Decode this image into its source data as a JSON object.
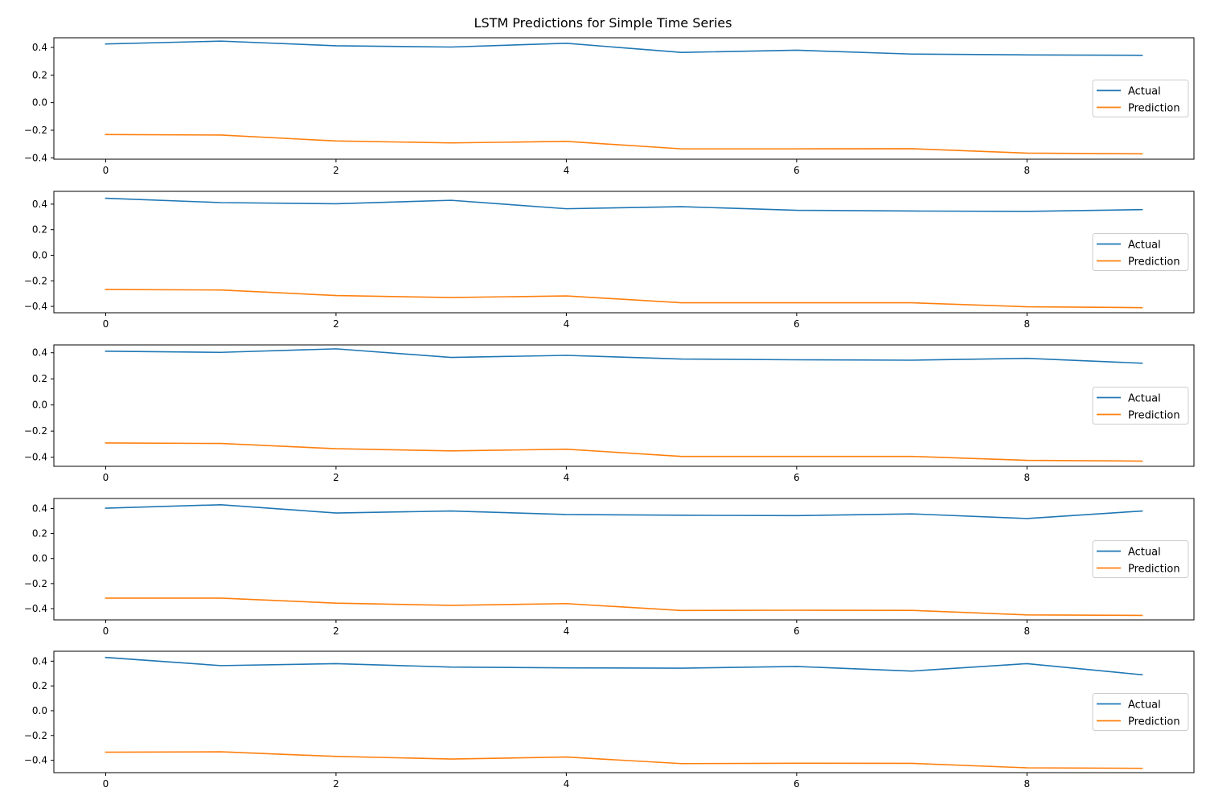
{
  "figure": {
    "title": "LSTM Predictions for Simple Time Series"
  },
  "colors": {
    "Actual": "#1f77b4",
    "Prediction": "#ff7f0e"
  },
  "chart_data": [
    {
      "type": "line",
      "x": [
        0,
        1,
        2,
        3,
        4,
        5,
        6,
        7,
        8,
        9
      ],
      "xticks": [
        0,
        2,
        4,
        6,
        8
      ],
      "xlim": [
        -0.45,
        9.45
      ],
      "ylim": [
        -0.41,
        0.47
      ],
      "yticks": [
        0.4,
        0.2,
        0.0,
        -0.2,
        -0.4
      ],
      "ytick_labels": [
        "0.4",
        "0.2",
        "0.0",
        "−0.2",
        "−0.4"
      ],
      "legend": "center-right",
      "grid": false,
      "series": [
        {
          "name": "Actual",
          "values": [
            0.425,
            0.446,
            0.412,
            0.403,
            0.43,
            0.364,
            0.38,
            0.352,
            0.346,
            0.343
          ]
        },
        {
          "name": "Prediction",
          "values": [
            -0.231,
            -0.235,
            -0.278,
            -0.292,
            -0.281,
            -0.335,
            -0.335,
            -0.334,
            -0.366,
            -0.371
          ]
        }
      ]
    },
    {
      "type": "line",
      "x": [
        0,
        1,
        2,
        3,
        4,
        5,
        6,
        7,
        8,
        9
      ],
      "xticks": [
        0,
        2,
        4,
        6,
        8
      ],
      "xlim": [
        -0.45,
        9.45
      ],
      "ylim": [
        -0.45,
        0.5
      ],
      "yticks": [
        0.4,
        0.2,
        0.0,
        -0.2,
        -0.4
      ],
      "ytick_labels": [
        "0.4",
        "0.2",
        "0.0",
        "−0.2",
        "−0.4"
      ],
      "legend": "center-right",
      "grid": false,
      "series": [
        {
          "name": "Actual",
          "values": [
            0.446,
            0.412,
            0.403,
            0.43,
            0.364,
            0.38,
            0.352,
            0.346,
            0.343,
            0.357
          ]
        },
        {
          "name": "Prediction",
          "values": [
            -0.268,
            -0.272,
            -0.315,
            -0.331,
            -0.318,
            -0.372,
            -0.372,
            -0.372,
            -0.403,
            -0.41
          ]
        }
      ]
    },
    {
      "type": "line",
      "x": [
        0,
        1,
        2,
        3,
        4,
        5,
        6,
        7,
        8,
        9
      ],
      "xticks": [
        0,
        2,
        4,
        6,
        8
      ],
      "xlim": [
        -0.45,
        9.45
      ],
      "ylim": [
        -0.47,
        0.46
      ],
      "yticks": [
        0.4,
        0.2,
        0.0,
        -0.2,
        -0.4
      ],
      "ytick_labels": [
        "0.4",
        "0.2",
        "0.0",
        "−0.2",
        "−0.4"
      ],
      "legend": "center-right",
      "grid": false,
      "series": [
        {
          "name": "Actual",
          "values": [
            0.412,
            0.403,
            0.43,
            0.364,
            0.38,
            0.352,
            0.346,
            0.343,
            0.357,
            0.32
          ]
        },
        {
          "name": "Prediction",
          "values": [
            -0.291,
            -0.295,
            -0.335,
            -0.352,
            -0.339,
            -0.394,
            -0.394,
            -0.394,
            -0.424,
            -0.43
          ]
        }
      ]
    },
    {
      "type": "line",
      "x": [
        0,
        1,
        2,
        3,
        4,
        5,
        6,
        7,
        8,
        9
      ],
      "xticks": [
        0,
        2,
        4,
        6,
        8
      ],
      "xlim": [
        -0.45,
        9.45
      ],
      "ylim": [
        -0.49,
        0.48
      ],
      "yticks": [
        0.4,
        0.2,
        0.0,
        -0.2,
        -0.4
      ],
      "ytick_labels": [
        "0.4",
        "0.2",
        "0.0",
        "−0.2",
        "−0.4"
      ],
      "legend": "center-right",
      "grid": false,
      "series": [
        {
          "name": "Actual",
          "values": [
            0.403,
            0.43,
            0.364,
            0.38,
            0.352,
            0.346,
            0.343,
            0.357,
            0.32,
            0.38
          ]
        },
        {
          "name": "Prediction",
          "values": [
            -0.316,
            -0.316,
            -0.356,
            -0.374,
            -0.36,
            -0.415,
            -0.413,
            -0.414,
            -0.45,
            -0.454
          ]
        }
      ]
    },
    {
      "type": "line",
      "x": [
        0,
        1,
        2,
        3,
        4,
        5,
        6,
        7,
        8,
        9
      ],
      "xticks": [
        0,
        2,
        4,
        6,
        8
      ],
      "xlim": [
        -0.45,
        9.45
      ],
      "ylim": [
        -0.5,
        0.48
      ],
      "yticks": [
        0.4,
        0.2,
        0.0,
        -0.2,
        -0.4
      ],
      "ytick_labels": [
        "0.4",
        "0.2",
        "0.0",
        "−0.2",
        "−0.4"
      ],
      "legend": "center-right",
      "grid": false,
      "series": [
        {
          "name": "Actual",
          "values": [
            0.43,
            0.364,
            0.38,
            0.352,
            0.346,
            0.343,
            0.357,
            0.32,
            0.38,
            0.29
          ]
        },
        {
          "name": "Prediction",
          "values": [
            -0.335,
            -0.332,
            -0.369,
            -0.39,
            -0.374,
            -0.427,
            -0.424,
            -0.425,
            -0.461,
            -0.465
          ]
        }
      ]
    }
  ]
}
